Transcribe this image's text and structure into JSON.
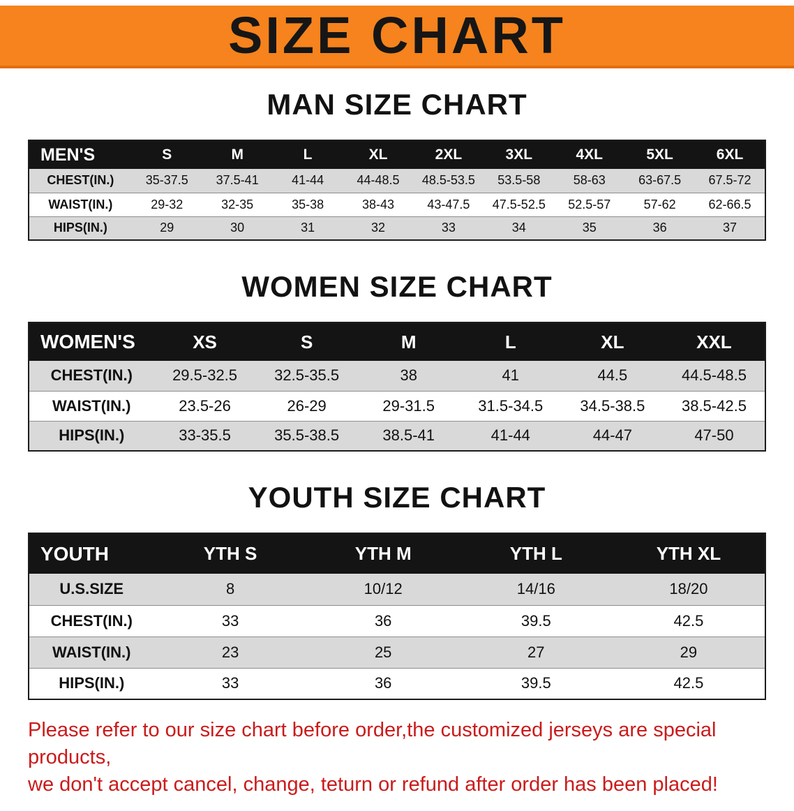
{
  "banner": {
    "title": "SIZE CHART"
  },
  "sections": [
    {
      "id": "men",
      "heading": "MAN SIZE CHART",
      "table": {
        "header": [
          "MEN'S",
          "S",
          "M",
          "L",
          "XL",
          "2XL",
          "3XL",
          "4XL",
          "5XL",
          "6XL"
        ],
        "rows": [
          {
            "label": "CHEST(IN.)",
            "values": [
              "35-37.5",
              "37.5-41",
              "41-44",
              "44-48.5",
              "48.5-53.5",
              "53.5-58",
              "58-63",
              "63-67.5",
              "67.5-72"
            ]
          },
          {
            "label": "WAIST(IN.)",
            "values": [
              "29-32",
              "32-35",
              "35-38",
              "38-43",
              "43-47.5",
              "47.5-52.5",
              "52.5-57",
              "57-62",
              "62-66.5"
            ]
          },
          {
            "label": "HIPS(IN.)",
            "values": [
              "29",
              "30",
              "31",
              "32",
              "33",
              "34",
              "35",
              "36",
              "37"
            ]
          }
        ]
      }
    },
    {
      "id": "women",
      "heading": "WOMEN SIZE CHART",
      "table": {
        "header": [
          "WOMEN'S",
          "XS",
          "S",
          "M",
          "L",
          "XL",
          "XXL"
        ],
        "rows": [
          {
            "label": "CHEST(IN.)",
            "values": [
              "29.5-32.5",
              "32.5-35.5",
              "38",
              "41",
              "44.5",
              "44.5-48.5"
            ]
          },
          {
            "label": "WAIST(IN.)",
            "values": [
              "23.5-26",
              "26-29",
              "29-31.5",
              "31.5-34.5",
              "34.5-38.5",
              "38.5-42.5"
            ]
          },
          {
            "label": "HIPS(IN.)",
            "values": [
              "33-35.5",
              "35.5-38.5",
              "38.5-41",
              "41-44",
              "44-47",
              "47-50"
            ]
          }
        ]
      }
    },
    {
      "id": "youth",
      "heading": "YOUTH SIZE CHART",
      "table": {
        "header": [
          "YOUTH",
          "YTH S",
          "YTH M",
          "YTH L",
          "YTH XL"
        ],
        "rows": [
          {
            "label": "U.S.SIZE",
            "values": [
              "8",
              "10/12",
              "14/16",
              "18/20"
            ]
          },
          {
            "label": "CHEST(IN.)",
            "values": [
              "33",
              "36",
              "39.5",
              "42.5"
            ]
          },
          {
            "label": "WAIST(IN.)",
            "values": [
              "23",
              "25",
              "27",
              "29"
            ]
          },
          {
            "label": "HIPS(IN.)",
            "values": [
              "33",
              "36",
              "39.5",
              "42.5"
            ]
          }
        ]
      }
    }
  ],
  "footer": {
    "lines": [
      "Please refer to our size chart before order,the customized jerseys are special products,",
      "we don't accept cancel, change, teturn or refund after order has been placed!"
    ]
  },
  "colors": {
    "banner_background": "#f6831d",
    "table_header_background": "#141414",
    "row_stripe": "#d9d9d9",
    "disclaimer_text": "#cb1b1b"
  }
}
